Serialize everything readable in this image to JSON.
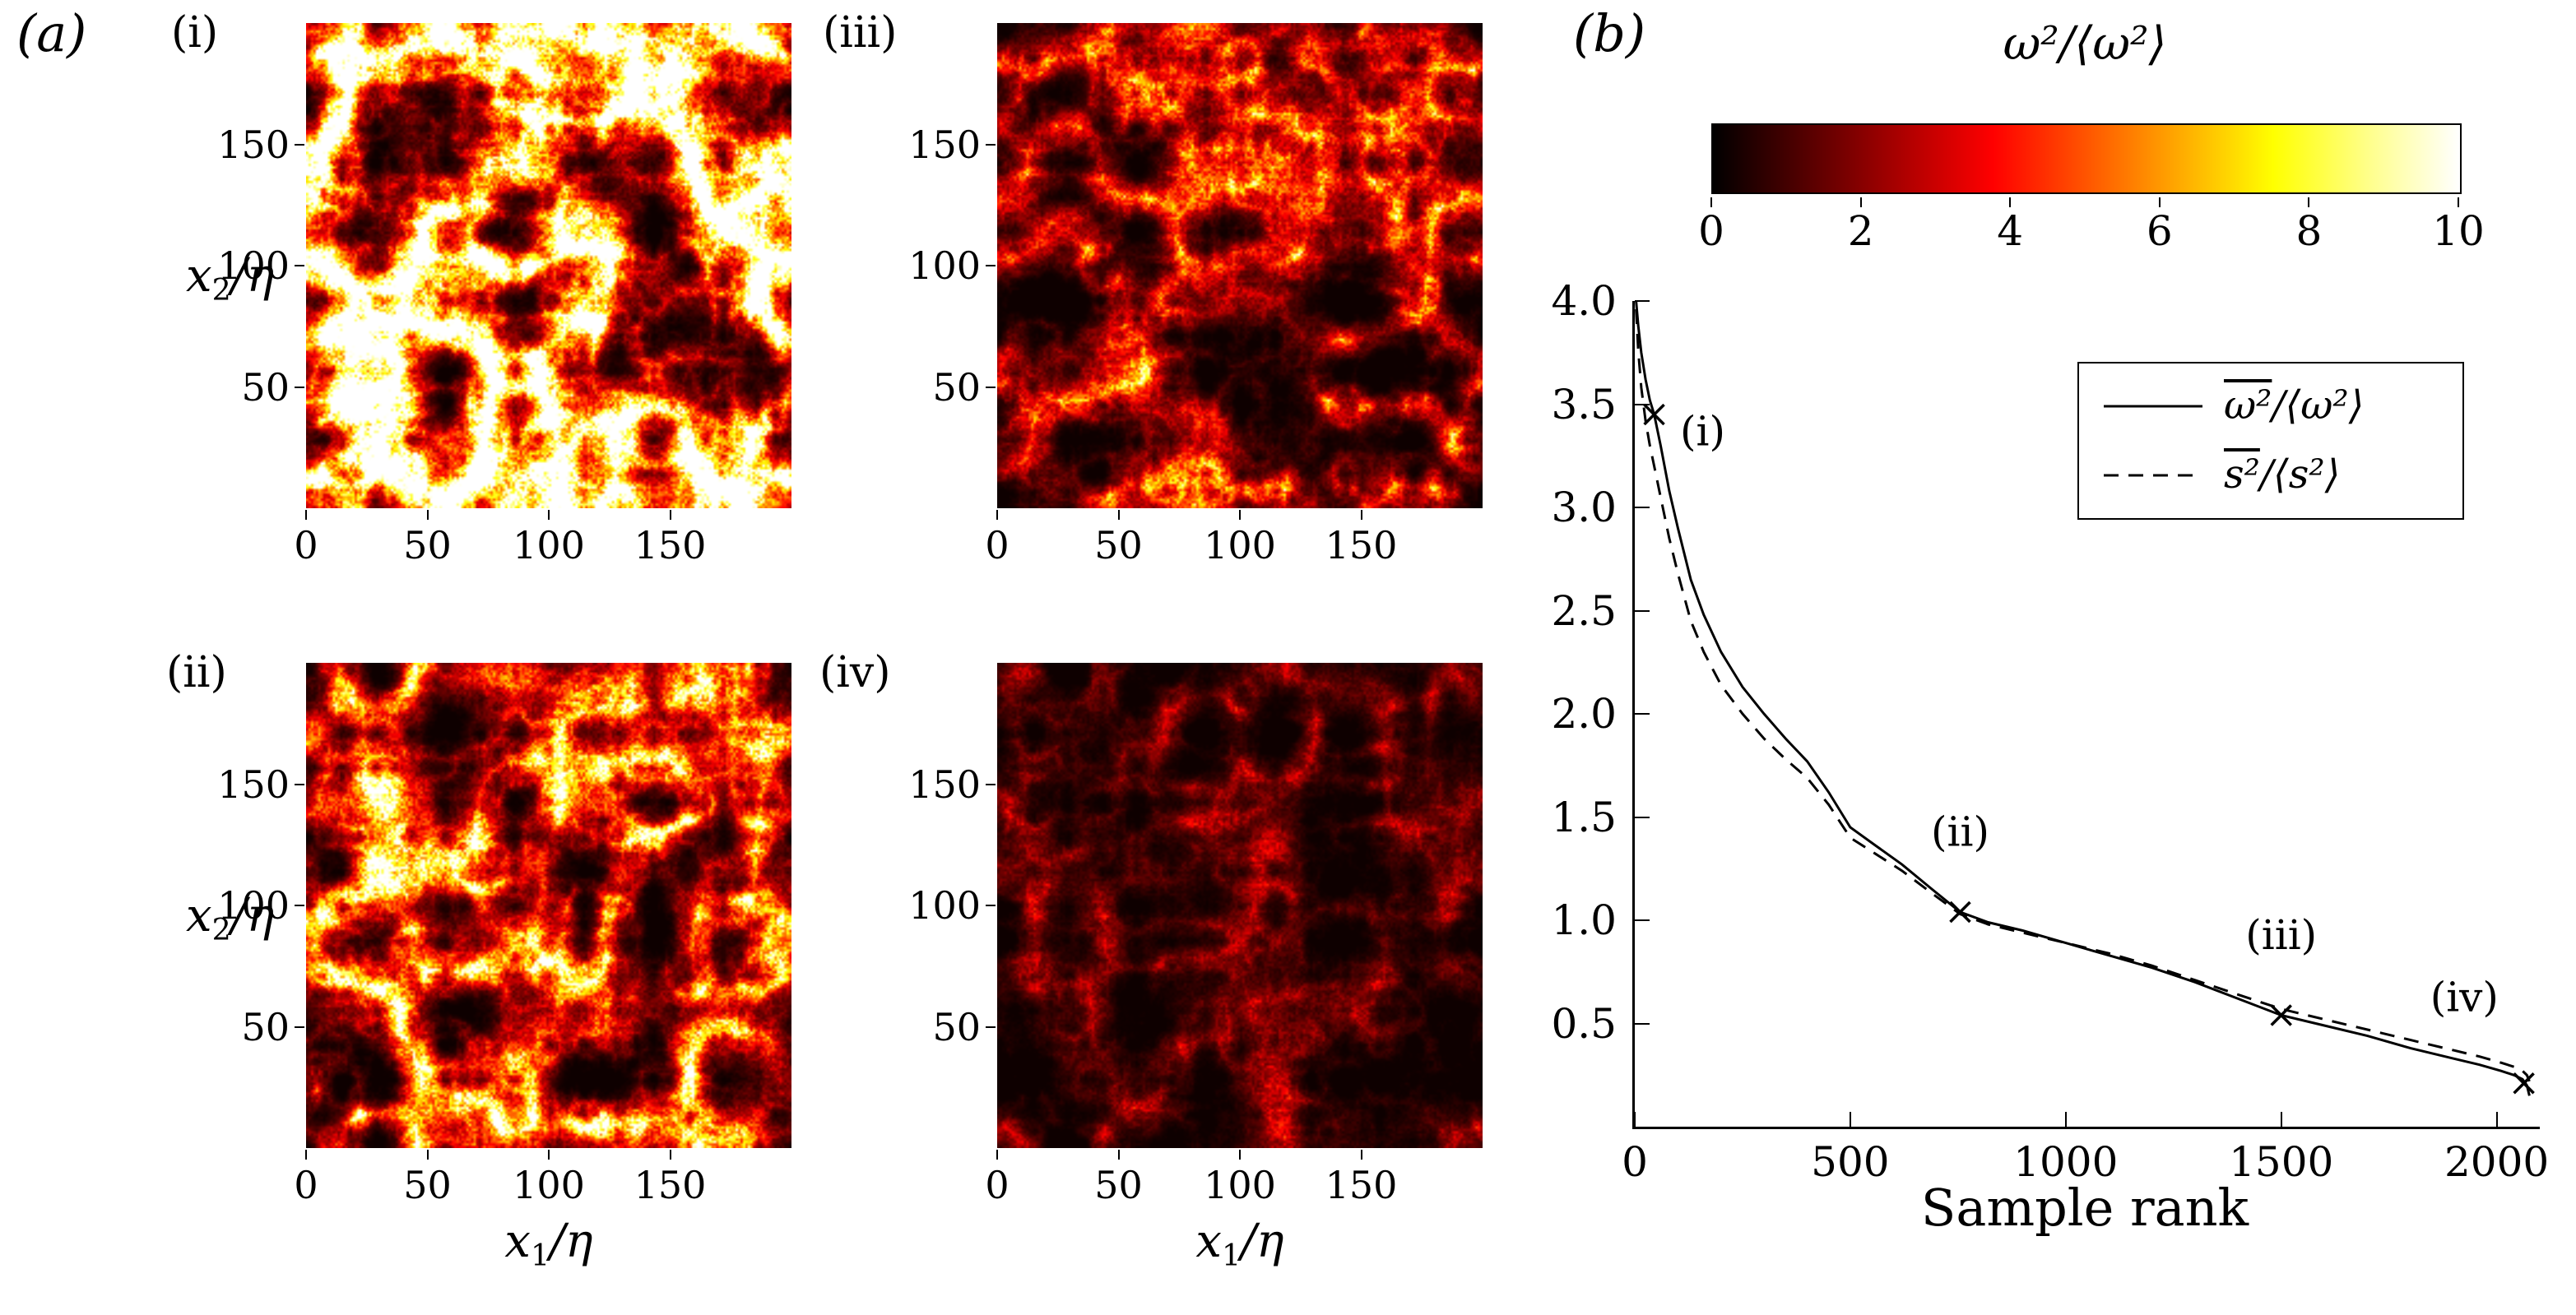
{
  "panel_a": {
    "label": "(a)",
    "subpanels": [
      {
        "label": "(i)"
      },
      {
        "label": "(iii)"
      },
      {
        "label": "(ii)"
      },
      {
        "label": "(iv)"
      }
    ],
    "x_label_parts": {
      "var": "x",
      "sub": "1",
      "rest": "/η"
    },
    "y_label_parts": {
      "var": "x",
      "sub": "2",
      "rest": "/η"
    }
  },
  "panel_b": {
    "label": "(b)",
    "colorbar": {
      "title": "ω²/⟨ω²⟩",
      "min": 0,
      "max": 10,
      "ticks": [
        0,
        2,
        4,
        6,
        8,
        10
      ]
    },
    "legend": {
      "entries": [
        {
          "over": "ω²",
          "rest": "/⟨ω²⟩",
          "style": "solid"
        },
        {
          "over": "s²",
          "rest": "/⟨s²⟩",
          "style": "dashed"
        }
      ]
    }
  },
  "chart_data": [
    {
      "type": "heatmap",
      "panel": "a",
      "colormap": "hot",
      "xlabel": "x₁/η",
      "ylabel": "x₂/η",
      "xlim": [
        0,
        200
      ],
      "ylim": [
        0,
        200
      ],
      "x_ticks": [
        0,
        50,
        100,
        150
      ],
      "y_ticks": [
        50,
        100,
        150
      ],
      "color_scale": {
        "title": "ω²/⟨ω²⟩",
        "min": 0,
        "max": 10,
        "ticks": [
          0,
          2,
          4,
          6,
          8,
          10
        ]
      },
      "subpanels": [
        {
          "label": "(i)",
          "seed": 101,
          "gain": 2.6,
          "exponent": 3.5
        },
        {
          "label": "(iii)",
          "seed": 303,
          "gain": 1.0,
          "exponent": 4.0
        },
        {
          "label": "(ii)",
          "seed": 202,
          "gain": 1.6,
          "exponent": 3.8
        },
        {
          "label": "(iv)",
          "seed": 404,
          "gain": 0.45,
          "exponent": 4.2
        }
      ]
    },
    {
      "type": "line",
      "xlabel": "Sample rank",
      "ylabel": "",
      "xlim": [
        0,
        2100
      ],
      "ylim": [
        0,
        4
      ],
      "x_ticks": [
        0,
        500,
        1000,
        1500,
        2000
      ],
      "y_ticks": [
        0.5,
        1,
        1.5,
        2,
        2.5,
        3,
        3.5,
        4
      ],
      "legend_position": "upper right",
      "series": [
        {
          "name": "ω²/⟨ω²⟩",
          "style": "solid",
          "x": [
            3,
            8,
            15,
            25,
            35,
            45,
            60,
            80,
            100,
            130,
            160,
            200,
            250,
            300,
            350,
            400,
            450,
            500,
            560,
            620,
            690,
            755,
            820,
            900,
            1000,
            1100,
            1200,
            1300,
            1400,
            1500,
            1600,
            1700,
            1800,
            1900,
            1960,
            2010,
            2040,
            2060,
            2070,
            2076
          ],
          "y": [
            4.0,
            3.88,
            3.75,
            3.62,
            3.52,
            3.45,
            3.3,
            3.08,
            2.9,
            2.65,
            2.48,
            2.3,
            2.13,
            2.0,
            1.88,
            1.77,
            1.62,
            1.45,
            1.36,
            1.27,
            1.15,
            1.04,
            0.99,
            0.95,
            0.89,
            0.83,
            0.77,
            0.7,
            0.62,
            0.54,
            0.49,
            0.44,
            0.38,
            0.33,
            0.3,
            0.27,
            0.25,
            0.23,
            0.2,
            0.15
          ]
        },
        {
          "name": "s²/⟨s²⟩",
          "style": "dashed",
          "x": [
            3,
            8,
            15,
            25,
            35,
            45,
            60,
            80,
            100,
            130,
            160,
            200,
            250,
            300,
            350,
            400,
            450,
            500,
            560,
            620,
            690,
            755,
            820,
            900,
            1000,
            1100,
            1200,
            1300,
            1400,
            1500,
            1600,
            1700,
            1800,
            1900,
            1960,
            2010,
            2040,
            2060,
            2070,
            2076
          ],
          "y": [
            3.96,
            3.76,
            3.58,
            3.42,
            3.3,
            3.2,
            3.05,
            2.85,
            2.68,
            2.45,
            2.3,
            2.14,
            2.0,
            1.88,
            1.78,
            1.69,
            1.56,
            1.4,
            1.32,
            1.24,
            1.13,
            1.03,
            0.98,
            0.94,
            0.89,
            0.84,
            0.78,
            0.71,
            0.64,
            0.57,
            0.52,
            0.47,
            0.42,
            0.37,
            0.34,
            0.31,
            0.29,
            0.27,
            0.25,
            0.22
          ]
        }
      ],
      "markers": [
        {
          "label": "(i)",
          "x": 45,
          "y": 3.45,
          "label_x": 105,
          "label_y": 3.3,
          "anchor": "start"
        },
        {
          "label": "(ii)",
          "x": 755,
          "y": 1.04,
          "label_x": 755,
          "label_y": 1.36,
          "anchor": "middle"
        },
        {
          "label": "(iii)",
          "x": 1500,
          "y": 0.54,
          "label_x": 1500,
          "label_y": 0.86,
          "anchor": "middle"
        },
        {
          "label": "(iv)",
          "x": 2063,
          "y": 0.21,
          "label_x": 1925,
          "label_y": 0.56,
          "anchor": "middle"
        }
      ]
    }
  ]
}
